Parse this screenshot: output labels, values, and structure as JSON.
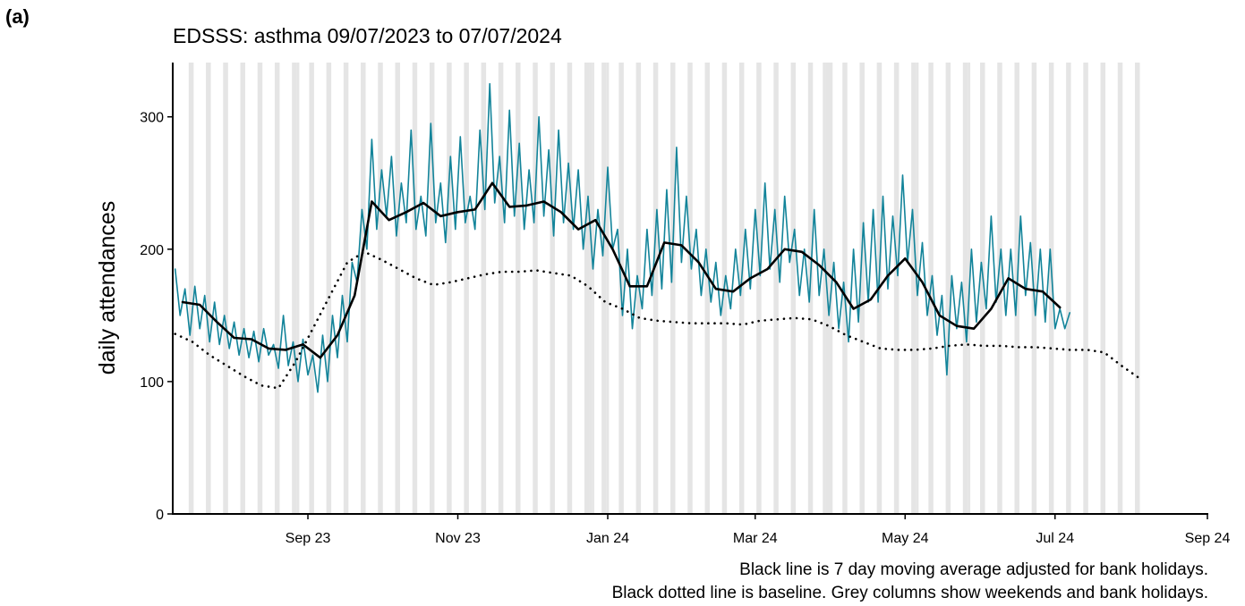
{
  "chart_data": {
    "type": "line",
    "panel_label": "(a)",
    "title": "EDSSS: asthma 09/07/2023 to 07/07/2024",
    "ylabel": "daily attendances",
    "notes": [
      "Black line is 7 day moving average adjusted for bank holidays.",
      "Black dotted line is baseline. Grey columns show weekends and bank holidays."
    ],
    "xlim": [
      -1,
      420
    ],
    "ylim": [
      0,
      341
    ],
    "xticks": [
      {
        "value": 54,
        "label": "Sep 23"
      },
      {
        "value": 115,
        "label": "Nov 23"
      },
      {
        "value": 176,
        "label": "Jan 24"
      },
      {
        "value": 236,
        "label": "Mar 24"
      },
      {
        "value": 297,
        "label": "May 24"
      },
      {
        "value": 358,
        "label": "Jul 24"
      },
      {
        "value": 420,
        "label": "Sep 24"
      }
    ],
    "yticks": [
      0,
      100,
      200,
      300
    ],
    "shade_color": "#e5e5e5",
    "weekend_starts": [
      6,
      13,
      20,
      27,
      34,
      41,
      48,
      55,
      62,
      69,
      76,
      83,
      90,
      97,
      104,
      111,
      118,
      125,
      132,
      139,
      146,
      153,
      160,
      167,
      174,
      181,
      188,
      195,
      202,
      209,
      216,
      223,
      230,
      237,
      244,
      251,
      258,
      265,
      272,
      279,
      286,
      293,
      300,
      307,
      314,
      321,
      328,
      335,
      342,
      349,
      356,
      363,
      370,
      377,
      384,
      391
    ],
    "bank_holidays": [
      50,
      169,
      170,
      176,
      264,
      267,
      302,
      323
    ],
    "series": [
      {
        "color": "#13849a",
        "dash": "solid",
        "width": 1.6,
        "x": [
          0,
          2,
          4,
          6,
          8,
          10,
          12,
          14,
          16,
          18,
          20,
          22,
          24,
          26,
          28,
          30,
          32,
          34,
          36,
          38,
          40,
          42,
          44,
          46,
          48,
          50,
          52,
          54,
          56,
          58,
          60,
          62,
          64,
          66,
          68,
          70,
          72,
          74,
          76,
          78,
          80,
          82,
          84,
          86,
          88,
          90,
          92,
          94,
          96,
          98,
          100,
          102,
          104,
          106,
          108,
          110,
          112,
          114,
          116,
          118,
          120,
          122,
          124,
          126,
          128,
          130,
          132,
          134,
          136,
          138,
          140,
          142,
          144,
          146,
          148,
          150,
          152,
          154,
          156,
          158,
          160,
          162,
          164,
          166,
          168,
          170,
          172,
          174,
          176,
          178,
          180,
          182,
          184,
          186,
          188,
          190,
          192,
          194,
          196,
          198,
          200,
          202,
          204,
          206,
          208,
          210,
          212,
          214,
          216,
          218,
          220,
          222,
          224,
          226,
          228,
          230,
          232,
          234,
          236,
          238,
          240,
          242,
          244,
          246,
          248,
          250,
          252,
          254,
          256,
          258,
          260,
          262,
          264,
          266,
          268,
          270,
          272,
          274,
          276,
          278,
          280,
          282,
          284,
          286,
          288,
          290,
          292,
          294,
          296,
          298,
          300,
          302,
          304,
          306,
          308,
          310,
          312,
          314,
          316,
          318,
          320,
          322,
          324,
          326,
          328,
          330,
          332,
          334,
          336,
          338,
          340,
          342,
          344,
          346,
          348,
          350,
          352,
          354,
          356,
          358,
          360,
          362,
          364
        ],
        "values": [
          185,
          150,
          170,
          135,
          172,
          140,
          165,
          130,
          160,
          128,
          150,
          125,
          145,
          120,
          140,
          118,
          138,
          115,
          140,
          120,
          128,
          110,
          150,
          112,
          130,
          100,
          132,
          105,
          120,
          92,
          135,
          100,
          150,
          118,
          165,
          130,
          190,
          175,
          230,
          200,
          283,
          215,
          260,
          225,
          270,
          210,
          250,
          220,
          290,
          215,
          240,
          210,
          295,
          220,
          250,
          205,
          270,
          215,
          285,
          220,
          240,
          215,
          290,
          230,
          325,
          235,
          270,
          220,
          305,
          225,
          280,
          215,
          260,
          220,
          300,
          225,
          275,
          210,
          290,
          220,
          265,
          215,
          260,
          200,
          240,
          185,
          230,
          195,
          262,
          200,
          215,
          150,
          200,
          140,
          180,
          155,
          215,
          165,
          230,
          170,
          245,
          175,
          277,
          190,
          240,
          185,
          215,
          165,
          200,
          160,
          190,
          150,
          180,
          155,
          200,
          165,
          215,
          170,
          230,
          180,
          250,
          185,
          230,
          175,
          240,
          190,
          215,
          165,
          200,
          160,
          230,
          165,
          200,
          150,
          190,
          140,
          175,
          130,
          200,
          145,
          220,
          160,
          230,
          160,
          240,
          170,
          225,
          180,
          256,
          190,
          230,
          165,
          205,
          150,
          180,
          135,
          165,
          105,
          180,
          140,
          175,
          130,
          200,
          145,
          190,
          155,
          225,
          160,
          200,
          150,
          200,
          150,
          225,
          165,
          205,
          150,
          200,
          145,
          200,
          140,
          155,
          140,
          152
        ]
      },
      {
        "color": "#000000",
        "dash": "solid",
        "width": 2.6,
        "x": [
          3,
          10,
          17,
          24,
          31,
          38,
          45,
          52,
          59,
          66,
          73,
          80,
          87,
          94,
          101,
          108,
          115,
          122,
          129,
          136,
          143,
          150,
          157,
          164,
          171,
          178,
          185,
          192,
          199,
          206,
          213,
          220,
          227,
          234,
          241,
          248,
          255,
          262,
          269,
          276,
          283,
          290,
          297,
          304,
          311,
          318,
          325,
          332,
          339,
          346,
          353,
          360
        ],
        "values": [
          160,
          158,
          145,
          133,
          132,
          125,
          124,
          128,
          118,
          135,
          165,
          236,
          222,
          228,
          235,
          225,
          228,
          230,
          250,
          232,
          233,
          236,
          228,
          215,
          222,
          200,
          172,
          172,
          205,
          203,
          190,
          170,
          168,
          178,
          185,
          200,
          198,
          188,
          175,
          155,
          162,
          180,
          193,
          175,
          150,
          142,
          140,
          155,
          178,
          170,
          168,
          156
        ]
      },
      {
        "color": "#000000",
        "dash": "dotted",
        "width": 2.6,
        "x": [
          0,
          7,
          14,
          21,
          28,
          35,
          42,
          49,
          56,
          63,
          70,
          77,
          84,
          91,
          98,
          105,
          112,
          119,
          126,
          133,
          140,
          147,
          154,
          161,
          168,
          175,
          182,
          189,
          196,
          203,
          210,
          217,
          224,
          231,
          238,
          245,
          252,
          259,
          266,
          273,
          280,
          287,
          294,
          301,
          308,
          315,
          322,
          329,
          336,
          343,
          350,
          357,
          364,
          371,
          378,
          385,
          392
        ],
        "values": [
          136,
          130,
          120,
          112,
          104,
          97,
          95,
          115,
          140,
          165,
          190,
          198,
          192,
          185,
          178,
          173,
          175,
          178,
          181,
          183,
          183,
          184,
          182,
          180,
          172,
          160,
          155,
          148,
          146,
          145,
          144,
          144,
          144,
          143,
          146,
          147,
          148,
          147,
          142,
          135,
          130,
          125,
          124,
          124,
          125,
          127,
          128,
          127,
          127,
          126,
          126,
          125,
          124,
          124,
          122,
          112,
          103
        ]
      }
    ]
  }
}
